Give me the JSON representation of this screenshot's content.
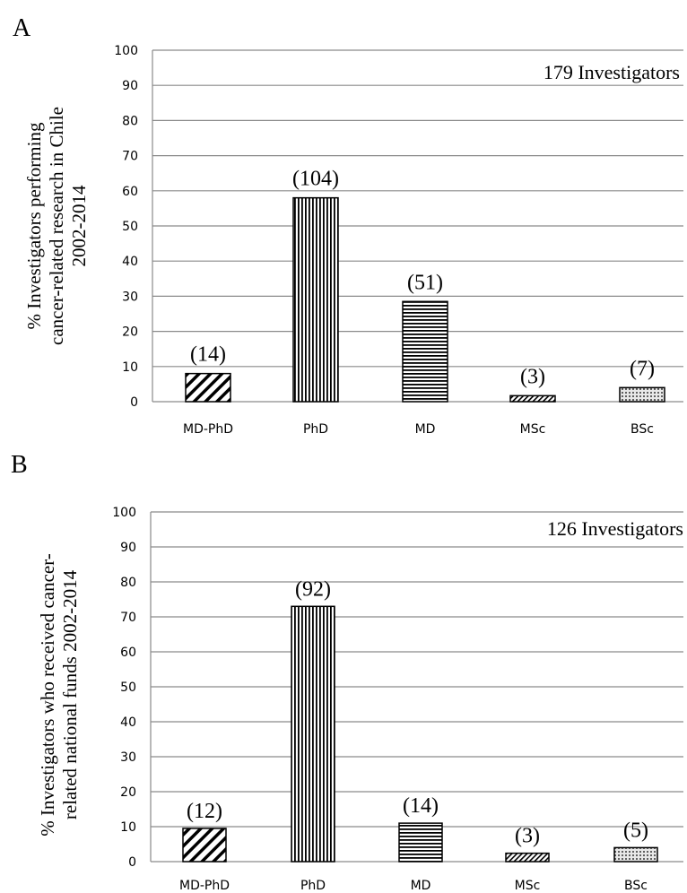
{
  "chart_data": [
    {
      "panel": "A",
      "type": "bar",
      "ylabel": [
        "% Investigators performing",
        "cancer-related research in Chile",
        "2002-2014"
      ],
      "annotation": "179 Investigators",
      "categories": [
        "MD-PhD",
        "PhD",
        "MD",
        "MSc",
        "BSc"
      ],
      "values": [
        8,
        58,
        28.5,
        1.7,
        4
      ],
      "data_labels": [
        "(14)",
        "(104)",
        "(51)",
        "(3)",
        "(7)"
      ],
      "patterns": [
        "diagonal",
        "vertical",
        "horizontal",
        "diagonal-dense",
        "dots"
      ],
      "ylim": [
        0,
        100
      ],
      "yticks": [
        0,
        10,
        20,
        30,
        40,
        50,
        60,
        70,
        80,
        90,
        100
      ],
      "grid": true
    },
    {
      "panel": "B",
      "type": "bar",
      "ylabel": [
        "% Investigators who received cancer-",
        "related national funds 2002-2014"
      ],
      "annotation": "126 Investigators",
      "categories": [
        "MD-PhD",
        "PhD",
        "MD",
        "MSc",
        "BSc"
      ],
      "values": [
        9.5,
        73,
        11,
        2.4,
        4
      ],
      "data_labels": [
        "(12)",
        "(92)",
        "(14)",
        "(3)",
        "(5)"
      ],
      "patterns": [
        "diagonal",
        "vertical",
        "horizontal",
        "diagonal-dense",
        "dots"
      ],
      "ylim": [
        0,
        100
      ],
      "yticks": [
        0,
        10,
        20,
        30,
        40,
        50,
        60,
        70,
        80,
        90,
        100
      ],
      "grid": true
    }
  ]
}
